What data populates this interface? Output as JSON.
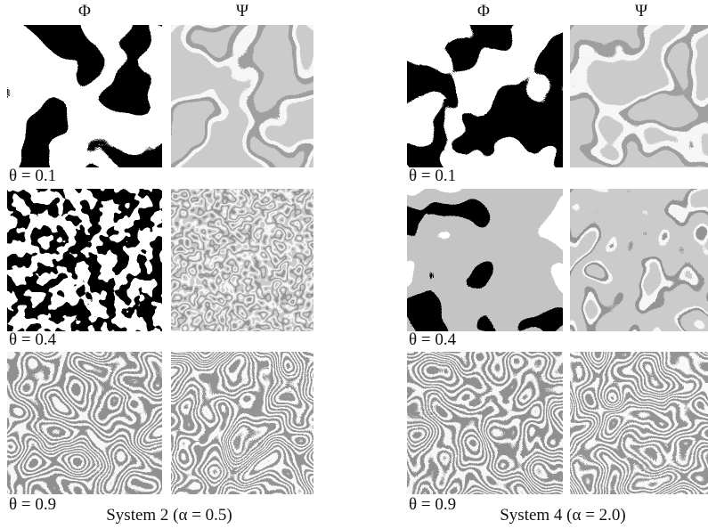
{
  "panels": [
    {
      "caption": "System 2 (α = 0.5)",
      "columns": [
        "Φ",
        "Ψ"
      ],
      "rows": [
        {
          "label": "θ = 0.1"
        },
        {
          "label": "θ = 0.4"
        },
        {
          "label": "θ = 0.9"
        }
      ]
    },
    {
      "caption": "System 4 (α = 2.0)",
      "columns": [
        "Φ",
        "Ψ"
      ],
      "rows": [
        {
          "label": "θ = 0.1"
        },
        {
          "label": "θ = 0.4"
        },
        {
          "label": "θ = 0.9"
        }
      ]
    }
  ]
}
